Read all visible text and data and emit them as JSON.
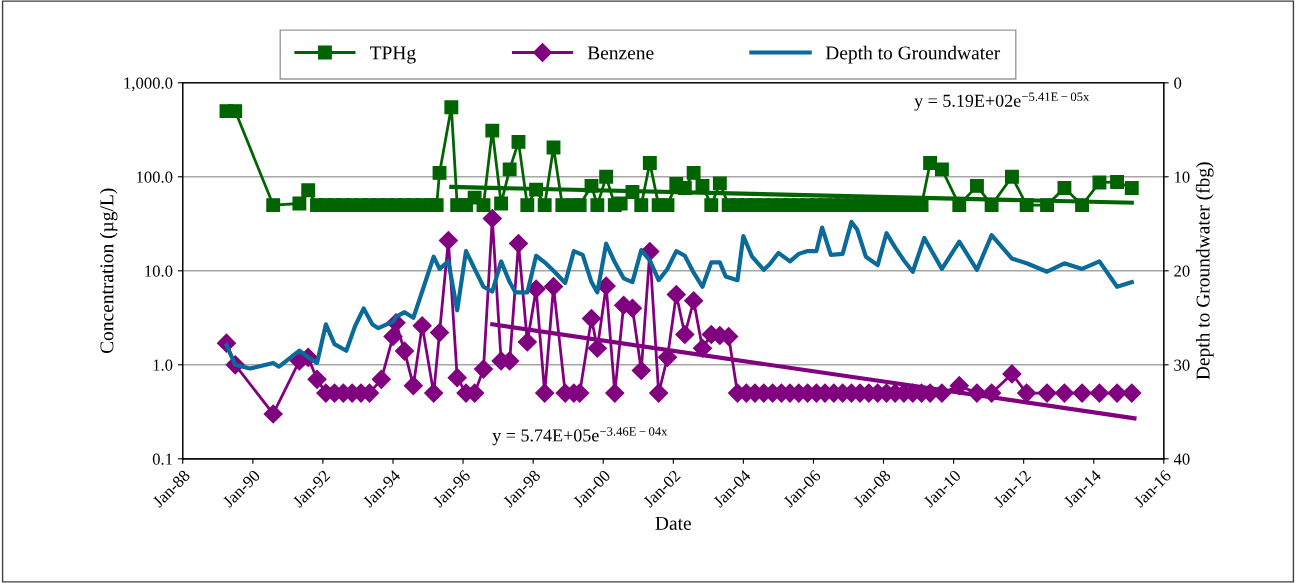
{
  "chart_data": {
    "type": "line",
    "xlabel": "Date",
    "ylabel": "Concentration (µg/L)",
    "y2label": "Depth to Groundwater (fbg)",
    "log": "y",
    "grid": "y",
    "legend": "top",
    "xlim": [
      "1988-01-01",
      "2016-01-01"
    ],
    "xticks": [
      {
        "value": "1988-01-01",
        "label": "Jan-88"
      },
      {
        "value": "1990-01-01",
        "label": "Jan-90"
      },
      {
        "value": "1992-01-01",
        "label": "Jan-92"
      },
      {
        "value": "1994-01-01",
        "label": "Jan-94"
      },
      {
        "value": "1996-01-01",
        "label": "Jan-96"
      },
      {
        "value": "1998-01-01",
        "label": "Jan-98"
      },
      {
        "value": "2000-01-01",
        "label": "Jan-00"
      },
      {
        "value": "2002-01-01",
        "label": "Jan-02"
      },
      {
        "value": "2004-01-01",
        "label": "Jan-04"
      },
      {
        "value": "2006-01-01",
        "label": "Jan-06"
      },
      {
        "value": "2008-01-01",
        "label": "Jan-08"
      },
      {
        "value": "2010-01-01",
        "label": "Jan-10"
      },
      {
        "value": "2012-01-01",
        "label": "Jan-12"
      },
      {
        "value": "2014-01-01",
        "label": "Jan-14"
      },
      {
        "value": "2016-01-01",
        "label": "Jan-16"
      }
    ],
    "ylim": [
      0.1,
      1000
    ],
    "yticks": [
      {
        "value": 0.1,
        "label": "0.1"
      },
      {
        "value": 1,
        "label": "1.0"
      },
      {
        "value": 10,
        "label": "10.0"
      },
      {
        "value": 100,
        "label": "100.0"
      },
      {
        "value": 1000,
        "label": "1,000.0"
      }
    ],
    "y2lim": [
      40,
      0
    ],
    "y2ticks": [
      0,
      10,
      20,
      30,
      40
    ],
    "series": [
      {
        "name": "TPHg",
        "color": "#006400",
        "marker": "square",
        "x": [
          "1989-04",
          "1989-07",
          "1990-08",
          "1991-05",
          "1991-08",
          "1991-11",
          "1992-02",
          "1992-05",
          "1992-08",
          "1992-11",
          "1993-02",
          "1993-05",
          "1993-08",
          "1993-11",
          "1994-02",
          "1994-05",
          "1994-08",
          "1994-11",
          "1995-02",
          "1995-04",
          "1995-05",
          "1995-09",
          "1995-11",
          "1996-01",
          "1996-02",
          "1996-05",
          "1996-08",
          "1996-11",
          "1997-02",
          "1997-05",
          "1997-08",
          "1997-11",
          "1998-02",
          "1998-05",
          "1998-08",
          "1998-11",
          "1999-03",
          "1999-05",
          "1999-09",
          "1999-11",
          "2000-02",
          "2000-05",
          "2000-07",
          "2000-11",
          "2001-02",
          "2001-05",
          "2001-08",
          "2001-11",
          "2002-02",
          "2002-05",
          "2002-08",
          "2002-11",
          "2003-02",
          "2003-05",
          "2003-08",
          "2003-11",
          "2004-02",
          "2004-05",
          "2004-08",
          "2004-11",
          "2005-02",
          "2005-05",
          "2005-08",
          "2005-11",
          "2006-02",
          "2006-05",
          "2006-08",
          "2006-11",
          "2007-02",
          "2007-05",
          "2007-08",
          "2007-11",
          "2008-02",
          "2008-05",
          "2008-08",
          "2008-11",
          "2009-02",
          "2009-05",
          "2009-09",
          "2010-03",
          "2010-09",
          "2011-02",
          "2011-09",
          "2012-02",
          "2012-09",
          "2013-03",
          "2013-09",
          "2014-03",
          "2014-09",
          "2015-02"
        ],
        "values": [
          500,
          500,
          50,
          52,
          72,
          50,
          50,
          50,
          50,
          50,
          50,
          50,
          50,
          50,
          50,
          50,
          50,
          50,
          50,
          50,
          110,
          550,
          50,
          50,
          50,
          60,
          50,
          310,
          52,
          120,
          235,
          50,
          73,
          50,
          205,
          50,
          50,
          50,
          80,
          50,
          100,
          50,
          52,
          69,
          50,
          140,
          50,
          50,
          84,
          76,
          110,
          80,
          50,
          85,
          50,
          50,
          50,
          50,
          50,
          50,
          50,
          50,
          50,
          50,
          50,
          50,
          50,
          50,
          50,
          50,
          50,
          50,
          50,
          50,
          50,
          50,
          50,
          140,
          120,
          50,
          80,
          50,
          100,
          50,
          50,
          76,
          50,
          87,
          88,
          76
        ]
      },
      {
        "name": "Benzene",
        "color": "#800080",
        "marker": "diamond",
        "x": [
          "1989-04",
          "1989-07",
          "1990-08",
          "1991-05",
          "1991-08",
          "1991-11",
          "1992-02",
          "1992-05",
          "1992-08",
          "1992-11",
          "1993-02",
          "1993-05",
          "1993-09",
          "1994-01",
          "1994-02",
          "1994-05",
          "1994-08",
          "1994-11",
          "1995-03",
          "1995-05",
          "1995-08",
          "1995-11",
          "1996-02",
          "1996-05",
          "1996-08",
          "1996-11",
          "1997-02",
          "1997-05",
          "1997-08",
          "1997-11",
          "1998-02",
          "1998-05",
          "1998-08",
          "1998-12",
          "1999-03",
          "1999-05",
          "1999-09",
          "1999-11",
          "2000-02",
          "2000-05",
          "2000-08",
          "2000-11",
          "2001-02",
          "2001-05",
          "2001-08",
          "2001-11",
          "2002-02",
          "2002-05",
          "2002-08",
          "2002-11",
          "2003-02",
          "2003-05",
          "2003-08",
          "2003-11",
          "2004-02",
          "2004-05",
          "2004-08",
          "2004-11",
          "2005-02",
          "2005-05",
          "2005-08",
          "2005-11",
          "2006-02",
          "2006-05",
          "2006-08",
          "2006-11",
          "2007-02",
          "2007-05",
          "2007-08",
          "2007-11",
          "2008-02",
          "2008-05",
          "2008-08",
          "2008-11",
          "2009-02",
          "2009-05",
          "2009-09",
          "2010-03",
          "2010-09",
          "2011-02",
          "2011-09",
          "2012-02",
          "2012-09",
          "2013-03",
          "2013-09",
          "2014-03",
          "2014-09",
          "2015-02"
        ],
        "values": [
          1.7,
          1.0,
          0.3,
          1.1,
          1.2,
          0.7,
          0.5,
          0.5,
          0.5,
          0.5,
          0.5,
          0.5,
          0.7,
          2.0,
          2.8,
          1.4,
          0.6,
          2.6,
          0.5,
          2.2,
          21,
          0.73,
          0.5,
          0.5,
          0.9,
          36,
          1.1,
          1.1,
          19.5,
          1.75,
          6.4,
          0.5,
          6.8,
          0.5,
          0.5,
          0.5,
          3.1,
          1.5,
          6.9,
          0.5,
          4.3,
          4.0,
          0.87,
          16,
          0.5,
          1.2,
          5.6,
          2.1,
          4.8,
          1.5,
          2.1,
          2.05,
          2.0,
          0.5,
          0.5,
          0.5,
          0.5,
          0.5,
          0.5,
          0.5,
          0.5,
          0.5,
          0.5,
          0.5,
          0.5,
          0.5,
          0.5,
          0.5,
          0.5,
          0.5,
          0.5,
          0.5,
          0.5,
          0.5,
          0.5,
          0.5,
          0.5,
          0.6,
          0.5,
          0.5,
          0.8,
          0.5,
          0.5,
          0.5,
          0.5,
          0.5,
          0.5,
          0.5
        ]
      },
      {
        "name": "Depth to Groundwater",
        "color": "#0a6a9a",
        "marker": "none",
        "axis": "y2",
        "x": [
          "1989-04",
          "1989-07",
          "1989-12",
          "1990-08",
          "1990-10",
          "1991-05",
          "1991-08",
          "1991-11",
          "1992-02",
          "1992-05",
          "1992-09",
          "1992-12",
          "1993-03",
          "1993-06",
          "1993-08",
          "1994-01",
          "1994-02",
          "1994-05",
          "1994-08",
          "1994-11",
          "1995-03",
          "1995-05",
          "1995-08",
          "1995-11",
          "1996-02",
          "1996-05",
          "1996-08",
          "1996-11",
          "1997-02",
          "1997-05",
          "1997-07",
          "1997-11",
          "1998-02",
          "1998-05",
          "1998-08",
          "1998-12",
          "1999-03",
          "1999-06",
          "1999-09",
          "1999-11",
          "2000-02",
          "2000-05",
          "2000-08",
          "2000-11",
          "2001-02",
          "2001-05",
          "2001-08",
          "2001-11",
          "2002-02",
          "2002-05",
          "2002-08",
          "2002-11",
          "2003-02",
          "2003-05",
          "2003-07",
          "2003-11",
          "2004-01",
          "2004-04",
          "2004-08",
          "2004-10",
          "2005-01",
          "2005-05",
          "2005-08",
          "2005-11",
          "2006-02",
          "2006-04",
          "2006-07",
          "2006-11",
          "2007-02",
          "2007-04",
          "2007-07",
          "2007-11",
          "2008-02",
          "2008-05",
          "2008-08",
          "2008-11",
          "2009-03",
          "2009-05",
          "2009-09",
          "2010-03",
          "2010-09",
          "2011-02",
          "2011-09",
          "2012-02",
          "2012-09",
          "2013-03",
          "2013-09",
          "2014-03",
          "2014-09",
          "2015-02"
        ],
        "values": [
          27.9,
          30.0,
          30.4,
          29.8,
          30.2,
          28.5,
          29.2,
          29.8,
          25.7,
          27.8,
          28.5,
          25.9,
          24.0,
          25.7,
          26.1,
          25.4,
          24.9,
          24.4,
          25.0,
          22.2,
          18.5,
          19.8,
          19.0,
          24.2,
          17.9,
          19.8,
          21.7,
          22.2,
          19.0,
          21.2,
          22.3,
          22.3,
          18.4,
          19.1,
          20.0,
          21.3,
          17.9,
          18.3,
          21.2,
          22.3,
          17.1,
          19.1,
          20.8,
          21.2,
          17.8,
          18.9,
          21.0,
          19.8,
          17.9,
          18.4,
          20.2,
          21.7,
          19.1,
          19.1,
          20.6,
          21.0,
          16.3,
          18.5,
          19.9,
          19.3,
          18.1,
          19.0,
          18.2,
          17.9,
          17.9,
          15.4,
          18.3,
          18.2,
          14.8,
          15.6,
          18.5,
          19.4,
          16.0,
          17.5,
          18.9,
          20.1,
          16.5,
          17.6,
          19.8,
          16.9,
          19.9,
          16.2,
          18.7,
          19.2,
          20.1,
          19.2,
          19.8,
          19.0,
          21.7,
          21.2
        ]
      },
      {
        "type": "line",
        "color": "#006400",
        "marker": "none",
        "x": [
          "1995-09",
          "2015-02"
        ],
        "values": [
          78,
          53
        ]
      },
      {
        "type": "line",
        "color": "#800080",
        "marker": "none",
        "x": [
          "1996-11",
          "2015-03"
        ],
        "values": [
          2.7,
          0.27
        ]
      }
    ],
    "annotations": [
      "y = 5.19E+02e$^{−5.41E−05x}$",
      "y = 5.74E+05e$^{−3.46E−04x}$"
    ]
  }
}
